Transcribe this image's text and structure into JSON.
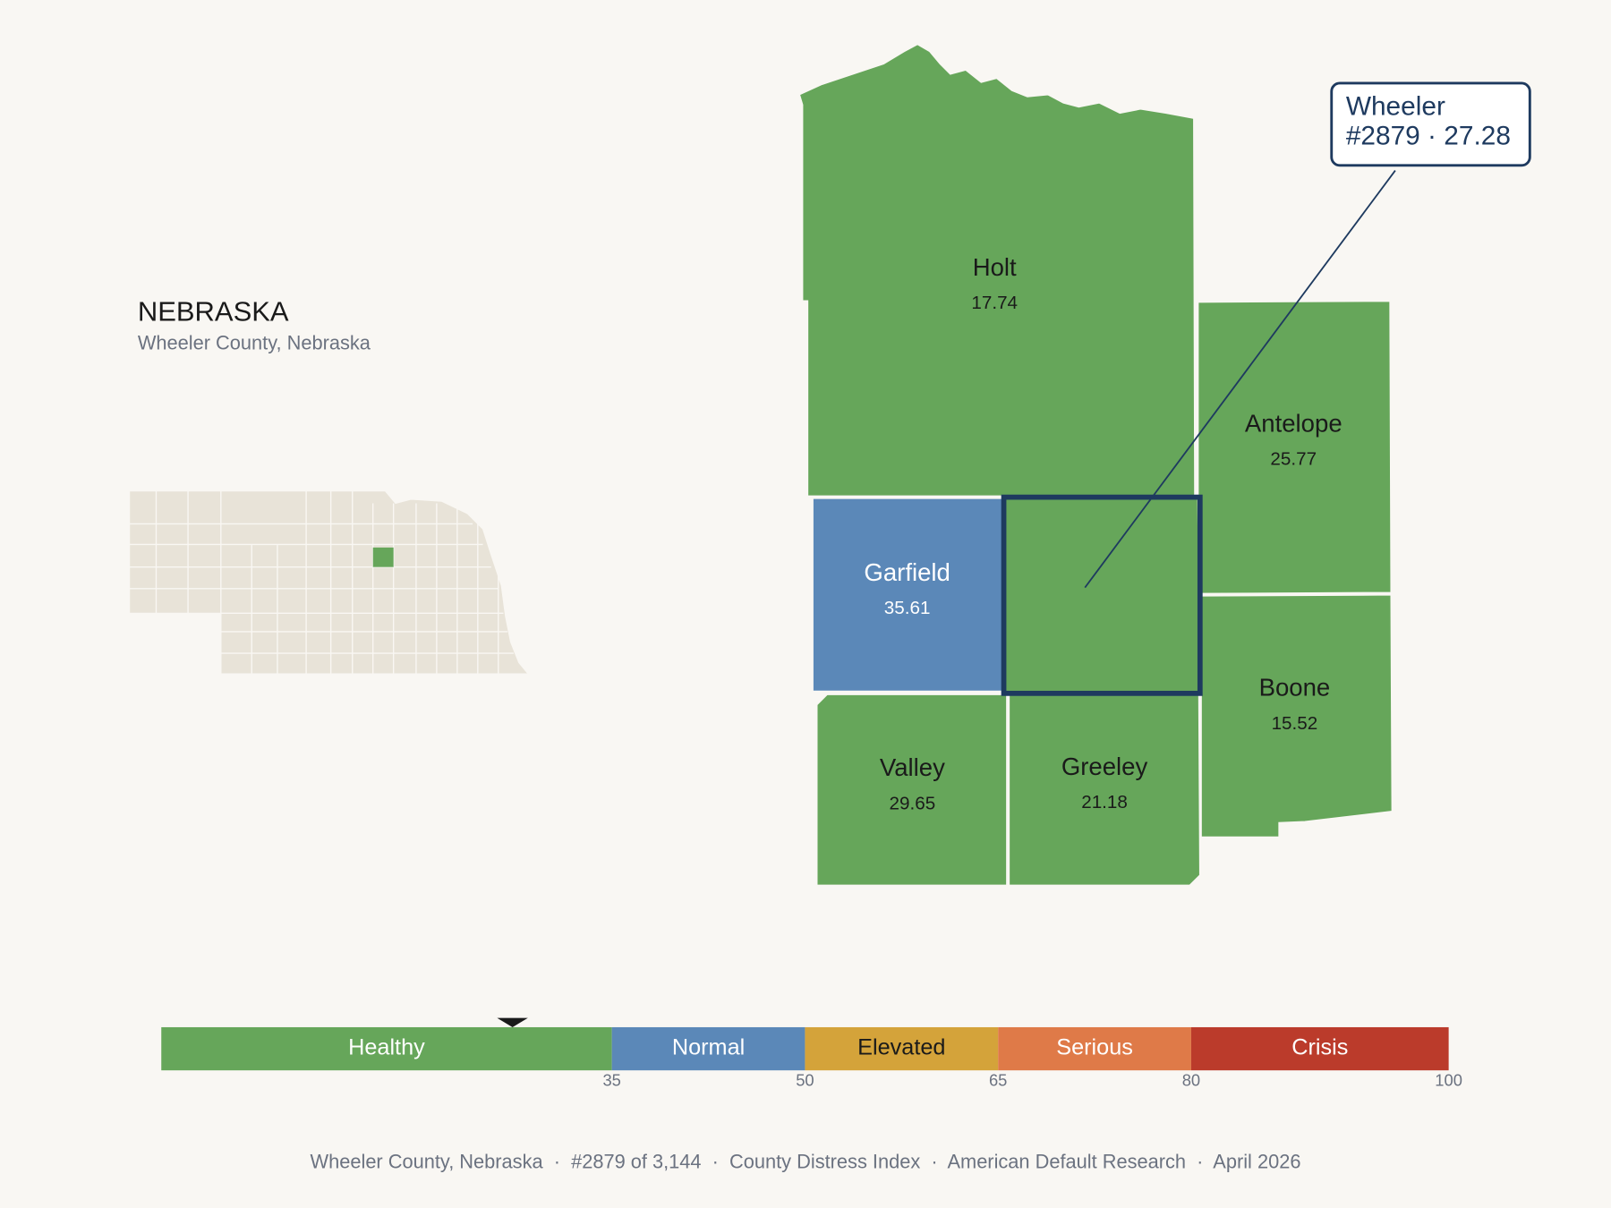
{
  "header": {
    "title": "NEBRASKA",
    "subtitle": "Wheeler County, Nebraska"
  },
  "callout": {
    "title": "Wheeler",
    "detail": "#2879 · 27.28"
  },
  "selected_value": 27.28,
  "counties": [
    {
      "name": "Holt",
      "value": 17.74
    },
    {
      "name": "Antelope",
      "value": 25.77
    },
    {
      "name": "Garfield",
      "value": 35.61
    },
    {
      "name": "Wheeler",
      "value": 27.28
    },
    {
      "name": "Boone",
      "value": 15.52
    },
    {
      "name": "Valley",
      "value": 29.65
    },
    {
      "name": "Greeley",
      "value": 21.18
    }
  ],
  "scale": {
    "xlim": [
      0,
      100
    ],
    "ticks": [
      35,
      50,
      65,
      80,
      100
    ],
    "bands": [
      {
        "label": "Healthy",
        "color": "#66a65a",
        "label_color": "#ffffff"
      },
      {
        "label": "Normal",
        "color": "#5b88b8",
        "label_color": "#ffffff"
      },
      {
        "label": "Elevated",
        "color": "#d4a33a",
        "label_color": "#1a1a1a"
      },
      {
        "label": "Serious",
        "color": "#df7a48",
        "label_color": "#ffffff"
      },
      {
        "label": "Crisis",
        "color": "#bb3b2b",
        "label_color": "#ffffff"
      }
    ]
  },
  "footer": "Wheeler County, Nebraska  ·  #2879 of 3,144  ·  County Distress Index  ·  American Default Research  ·  April 2026"
}
